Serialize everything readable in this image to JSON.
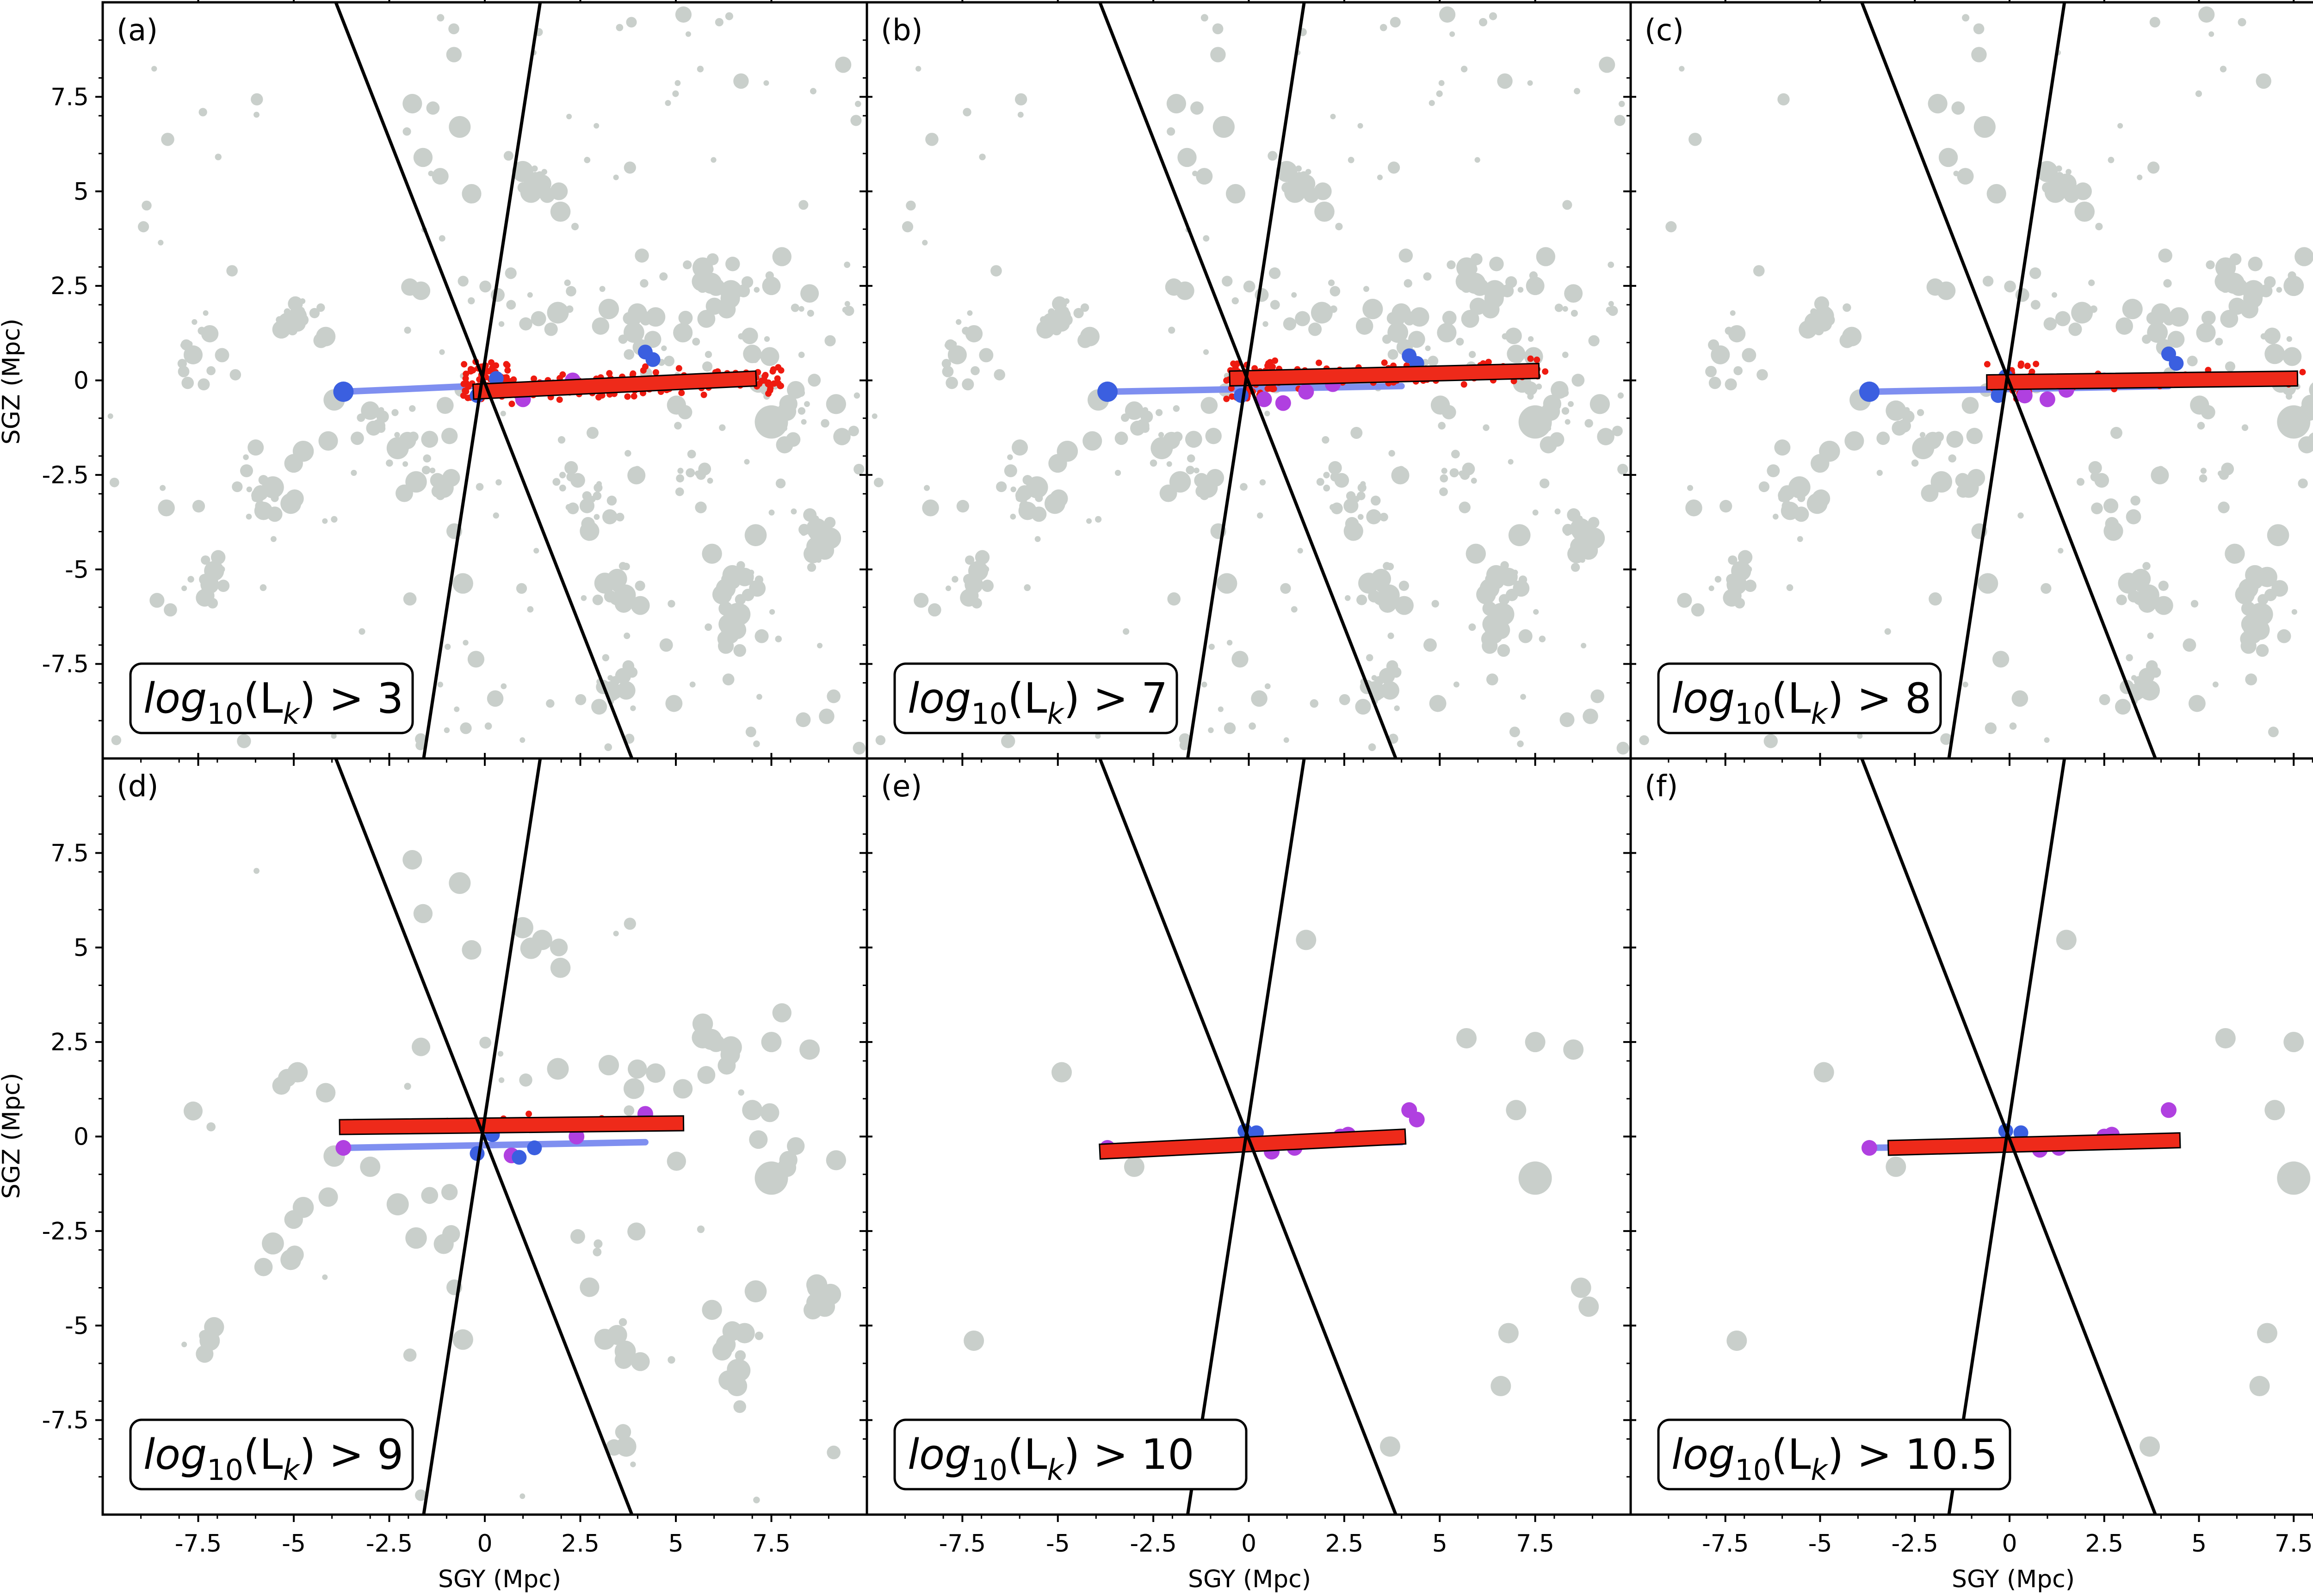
{
  "chart_data": {
    "type": "scatter",
    "title": "",
    "xlabel": "SGY (Mpc)",
    "ylabel": "SGZ (Mpc)",
    "xlim": [
      -10,
      10
    ],
    "ylim": [
      -10,
      10
    ],
    "xticks": [
      -7.5,
      -5,
      -2.5,
      0,
      2.5,
      5,
      7.5
    ],
    "xtick_labels": [
      "-7.5",
      "-5",
      "-2.5",
      "0",
      "2.5",
      "5",
      "7.5"
    ],
    "yticks": [
      -7.5,
      -5,
      -2.5,
      0,
      2.5,
      5,
      7.5
    ],
    "ytick_labels": [
      "-7.5",
      "-5",
      "-2.5",
      "0",
      "2.5",
      "5",
      "7.5"
    ],
    "colors": {
      "background_galaxies": "#c9cfcb",
      "blue_points": "#3b5fe0",
      "purple_points": "#b040e0",
      "red_points": "#ee1a10",
      "blue_fit": "#7f8ff0",
      "red_fit": "#ee2a1a",
      "cone_lines": "#000000"
    },
    "cone_lines": [
      {
        "name": "steep-line",
        "points": [
          [
            -1.6,
            -10
          ],
          [
            1.45,
            10
          ]
        ]
      },
      {
        "name": "shallow-line",
        "points": [
          [
            -3.9,
            10
          ],
          [
            3.85,
            -10
          ]
        ]
      }
    ],
    "panels": [
      {
        "letter": "(a)",
        "box_lhs": "log",
        "box_sub": "10",
        "box_mid": "(L",
        "box_sub2": "k",
        "box_rhs": ") > 3",
        "threshold": 3,
        "background_density": "high",
        "red_count": 220,
        "red_fit": [
          [
            -0.3,
            -0.3
          ],
          [
            7.1,
            0.05
          ]
        ],
        "blue_fit": [
          [
            -3.7,
            -0.3
          ],
          [
            -0.3,
            -0.15
          ]
        ],
        "blue": [
          [
            -3.7,
            -0.3
          ],
          [
            -0.2,
            -0.4
          ],
          [
            0.3,
            0.05
          ],
          [
            4.2,
            0.75
          ],
          [
            4.4,
            0.55
          ]
        ],
        "purple": [
          [
            1.0,
            -0.5
          ],
          [
            2.3,
            0.0
          ],
          [
            1.5,
            -0.2
          ]
        ]
      },
      {
        "letter": "(b)",
        "box_lhs": "log",
        "box_sub": "10",
        "box_mid": "(L",
        "box_sub2": "k",
        "box_rhs": ") > 7",
        "threshold": 7,
        "background_density": "high",
        "red_count": 160,
        "red_fit": [
          [
            -0.5,
            0.05
          ],
          [
            7.6,
            0.25
          ]
        ],
        "blue_fit": [
          [
            -3.7,
            -0.3
          ],
          [
            4.0,
            -0.15
          ]
        ],
        "blue": [
          [
            -3.7,
            -0.3
          ],
          [
            -0.2,
            -0.4
          ],
          [
            4.2,
            0.65
          ],
          [
            4.4,
            0.45
          ]
        ],
        "purple": [
          [
            0.9,
            -0.6
          ],
          [
            1.5,
            -0.3
          ],
          [
            2.2,
            -0.1
          ],
          [
            0.4,
            -0.5
          ]
        ]
      },
      {
        "letter": "(c)",
        "box_lhs": "log",
        "box_sub": "10",
        "box_mid": "(L",
        "box_sub2": "k",
        "box_rhs": ") > 8",
        "threshold": 8,
        "background_density": "medium",
        "red_count": 45,
        "red_fit": [
          [
            -0.6,
            -0.05
          ],
          [
            7.6,
            0.05
          ]
        ],
        "blue_fit": [
          [
            -3.7,
            -0.3
          ],
          [
            4.2,
            -0.15
          ]
        ],
        "blue": [
          [
            -3.7,
            -0.3
          ],
          [
            -0.1,
            0.1
          ],
          [
            -0.3,
            -0.4
          ],
          [
            4.2,
            0.7
          ],
          [
            4.4,
            0.45
          ]
        ],
        "purple": [
          [
            1.0,
            -0.5
          ],
          [
            1.5,
            -0.25
          ],
          [
            2.5,
            0.0
          ],
          [
            0.4,
            -0.4
          ]
        ]
      },
      {
        "letter": "(d)",
        "box_lhs": "log",
        "box_sub": "10",
        "box_mid": "(L",
        "box_sub2": "k",
        "box_rhs": ") > 9",
        "threshold": 9,
        "background_density": "low",
        "red_count": 12,
        "red_fit": [
          [
            -3.8,
            0.25
          ],
          [
            5.2,
            0.35
          ]
        ],
        "blue_fit": [
          [
            -3.7,
            -0.3
          ],
          [
            4.2,
            -0.15
          ]
        ],
        "blue": [
          [
            -0.2,
            -0.45
          ],
          [
            0.2,
            0.05
          ],
          [
            0.9,
            -0.55
          ],
          [
            1.3,
            -0.3
          ]
        ],
        "purple": [
          [
            -3.7,
            -0.3
          ],
          [
            0.7,
            -0.5
          ],
          [
            2.4,
            0.0
          ],
          [
            4.2,
            0.6
          ],
          [
            4.4,
            0.35
          ]
        ]
      },
      {
        "letter": "(e)",
        "box_lhs": "log",
        "box_sub": "10",
        "box_mid": "(L",
        "box_sub2": "k",
        "box_rhs": ") > 10",
        "threshold": 10,
        "background_density": "sparse",
        "red_count": 0,
        "red_fit": [
          [
            -3.9,
            -0.4
          ],
          [
            4.1,
            0.0
          ]
        ],
        "blue_fit": [
          [
            -3.7,
            -0.3
          ],
          [
            4.0,
            -0.15
          ]
        ],
        "blue": [
          [
            -0.1,
            0.15
          ],
          [
            0.2,
            0.1
          ]
        ],
        "purple": [
          [
            -3.7,
            -0.3
          ],
          [
            0.6,
            -0.4
          ],
          [
            1.2,
            -0.3
          ],
          [
            2.4,
            0.0
          ],
          [
            2.6,
            0.05
          ],
          [
            4.2,
            0.7
          ],
          [
            4.4,
            0.45
          ]
        ]
      },
      {
        "letter": "(f)",
        "box_lhs": "log",
        "box_sub": "10",
        "box_mid": "(L",
        "box_sub2": "k",
        "box_rhs": ") > 10.5",
        "threshold": 10.5,
        "background_density": "sparse",
        "red_count": 0,
        "red_fit": [
          [
            -3.2,
            -0.3
          ],
          [
            4.5,
            -0.1
          ]
        ],
        "blue_fit": [
          [
            -3.7,
            -0.3
          ],
          [
            4.0,
            -0.15
          ]
        ],
        "blue": [
          [
            -0.1,
            0.15
          ],
          [
            0.3,
            0.1
          ]
        ],
        "purple": [
          [
            -3.7,
            -0.3
          ],
          [
            0.8,
            -0.35
          ],
          [
            1.3,
            -0.3
          ],
          [
            2.5,
            0.0
          ],
          [
            2.7,
            0.05
          ],
          [
            4.2,
            0.7
          ]
        ]
      }
    ]
  }
}
